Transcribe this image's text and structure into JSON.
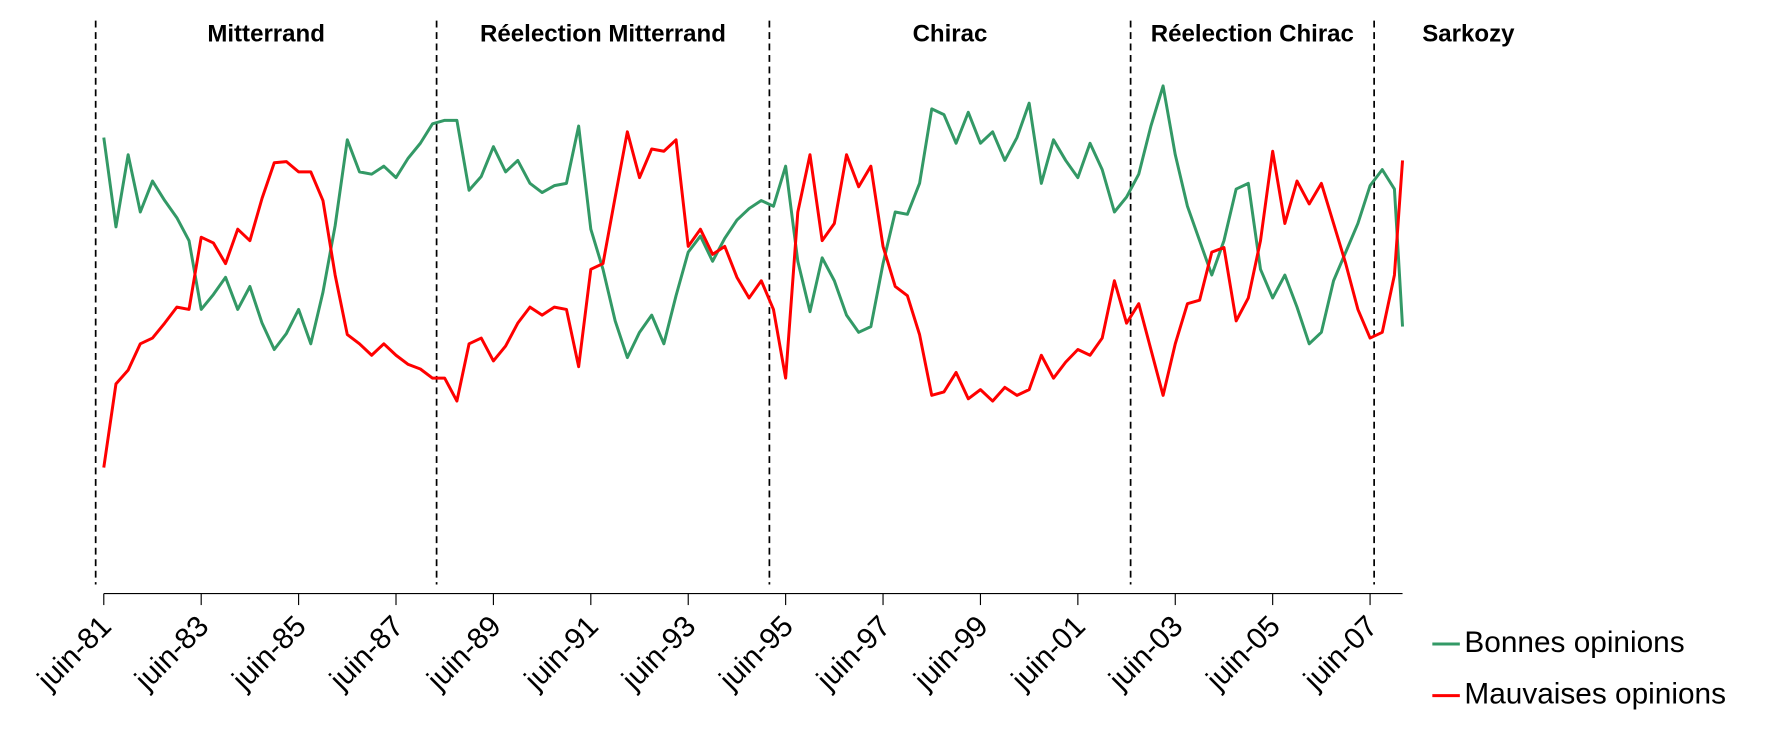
{
  "chart_data": {
    "type": "line",
    "x": [
      "1981-06",
      "1981-09",
      "1981-12",
      "1982-03",
      "1982-06",
      "1982-09",
      "1982-12",
      "1983-03",
      "1983-06",
      "1983-09",
      "1983-12",
      "1984-03",
      "1984-06",
      "1984-09",
      "1984-12",
      "1985-03",
      "1985-06",
      "1985-09",
      "1985-12",
      "1986-03",
      "1986-06",
      "1986-09",
      "1986-12",
      "1987-03",
      "1987-06",
      "1987-09",
      "1987-12",
      "1988-03",
      "1988-06",
      "1988-09",
      "1988-12",
      "1989-03",
      "1989-06",
      "1989-09",
      "1989-12",
      "1990-03",
      "1990-06",
      "1990-09",
      "1990-12",
      "1991-03",
      "1991-06",
      "1991-09",
      "1991-12",
      "1992-03",
      "1992-06",
      "1992-09",
      "1992-12",
      "1993-03",
      "1993-06",
      "1993-09",
      "1993-12",
      "1994-03",
      "1994-06",
      "1994-09",
      "1994-12",
      "1995-03",
      "1995-06",
      "1995-09",
      "1995-12",
      "1996-03",
      "1996-06",
      "1996-09",
      "1996-12",
      "1997-03",
      "1997-06",
      "1997-09",
      "1997-12",
      "1998-03",
      "1998-06",
      "1998-09",
      "1998-12",
      "1999-03",
      "1999-06",
      "1999-09",
      "1999-12",
      "2000-03",
      "2000-06",
      "2000-09",
      "2000-12",
      "2001-03",
      "2001-06",
      "2001-09",
      "2001-12",
      "2002-03",
      "2002-06",
      "2002-09",
      "2002-12",
      "2003-03",
      "2003-06",
      "2003-09",
      "2003-12",
      "2004-03",
      "2004-06",
      "2004-09",
      "2004-12",
      "2005-03",
      "2005-06",
      "2005-09",
      "2005-12",
      "2006-03",
      "2006-06",
      "2006-09",
      "2006-12",
      "2007-03",
      "2007-06",
      "2007-09",
      "2007-12",
      "2008-02"
    ],
    "series": [
      {
        "name": "Bonnes opinions",
        "color": "#339966",
        "values": [
          79.6,
          64,
          76.6,
          66.6,
          72,
          68.6,
          65.6,
          61.6,
          49.6,
          52.2,
          55.2,
          49.6,
          53.6,
          47.2,
          42.6,
          45.4,
          49.6,
          43.6,
          52.6,
          64.2,
          79.2,
          73.6,
          73.2,
          74.6,
          72.6,
          76,
          78.6,
          82,
          82.6,
          82.6,
          70.4,
          72.8,
          78,
          73.6,
          75.6,
          71.6,
          70,
          71.2,
          71.6,
          81.6,
          63.6,
          56.6,
          47.6,
          41.2,
          45.6,
          48.6,
          43.6,
          52,
          59.6,
          62.4,
          58,
          62,
          65.2,
          67.2,
          68.6,
          67.6,
          74.6,
          58,
          49.2,
          58.6,
          54.6,
          48.6,
          45.6,
          46.6,
          57.6,
          66.6,
          66.2,
          71.6,
          84.6,
          83.6,
          78.6,
          84,
          78.6,
          80.6,
          75.6,
          79.6,
          85.6,
          71.6,
          79.2,
          75.6,
          72.6,
          78.6,
          74,
          66.6,
          69.2,
          73.2,
          81.6,
          88.6,
          76.6,
          67.6,
          61.6,
          55.6,
          61.6,
          70.6,
          71.6,
          56.6,
          51.6,
          55.6,
          50,
          43.6,
          45.6,
          54.6,
          59.6,
          64.6,
          71.2,
          74,
          70.6,
          46.6
        ]
      },
      {
        "name": "Mauvaises opinions",
        "color": "#ff0000",
        "values": [
          22,
          36.6,
          39,
          43.6,
          44.6,
          47.2,
          50,
          49.6,
          62.2,
          61.2,
          57.6,
          63.6,
          61.6,
          69,
          75.2,
          75.4,
          73.6,
          73.6,
          68.6,
          55.6,
          45.2,
          43.6,
          41.6,
          43.6,
          41.6,
          40,
          39.2,
          37.6,
          37.6,
          33.6,
          43.6,
          44.6,
          40.6,
          43.2,
          47.2,
          50,
          48.6,
          50,
          49.6,
          39.6,
          56.6,
          57.6,
          69.2,
          80.6,
          72.6,
          77.6,
          77.2,
          79.2,
          60.6,
          63.6,
          59.2,
          60.6,
          55.2,
          51.6,
          54.6,
          49.6,
          37.6,
          66.6,
          76.6,
          61.6,
          64.6,
          76.6,
          71,
          74.6,
          60.6,
          53.6,
          52,
          45.2,
          34.6,
          35.2,
          38.6,
          34,
          35.6,
          33.6,
          36,
          34.6,
          35.6,
          41.6,
          37.6,
          40.4,
          42.6,
          41.6,
          44.6,
          54.6,
          47.2,
          50.6,
          42.6,
          34.6,
          43.6,
          50.6,
          51.2,
          59.6,
          60.4,
          47.6,
          51.6,
          61.6,
          77.2,
          64.6,
          72,
          68,
          71.6,
          64.6,
          57.6,
          49.6,
          44.6,
          45.6,
          55.6,
          75.6
        ]
      }
    ],
    "xticks": [
      {
        "value": "1981-06",
        "label": "juin-81"
      },
      {
        "value": "1983-06",
        "label": "juin-83"
      },
      {
        "value": "1985-06",
        "label": "juin-85"
      },
      {
        "value": "1987-06",
        "label": "juin-87"
      },
      {
        "value": "1989-06",
        "label": "juin-89"
      },
      {
        "value": "1991-06",
        "label": "juin-91"
      },
      {
        "value": "1993-06",
        "label": "juin-93"
      },
      {
        "value": "1995-06",
        "label": "juin-95"
      },
      {
        "value": "1997-06",
        "label": "juin-97"
      },
      {
        "value": "1999-06",
        "label": "juin-99"
      },
      {
        "value": "2001-06",
        "label": "juin-01"
      },
      {
        "value": "2003-06",
        "label": "juin-03"
      },
      {
        "value": "2005-06",
        "label": "juin-05"
      },
      {
        "value": "2007-06",
        "label": "juin-07"
      }
    ],
    "ylim": [
      0,
      100
    ],
    "periods": [
      {
        "x": "1981-04",
        "label": "Mitterrand"
      },
      {
        "x": "1988-04",
        "label": "Réelection Mitterrand"
      },
      {
        "x": "1995-02",
        "label": "Chirac"
      },
      {
        "x": "2002-07",
        "label": "Réelection Chirac"
      },
      {
        "x": "2007-07",
        "label": "Sarkozy"
      }
    ],
    "legend": "right"
  }
}
